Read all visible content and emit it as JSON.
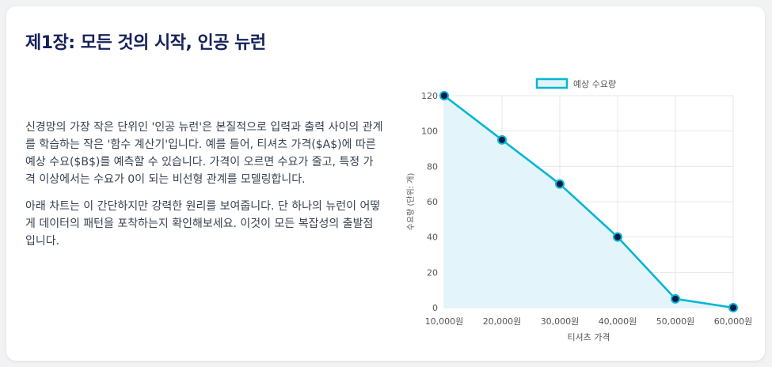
{
  "card": {
    "title": "제1장: 모든 것의 시작, 인공 뉴런",
    "paragraphs": [
      "신경망의 가장 작은 단위인 '인공 뉴런'은 본질적으로 입력과 출력 사이의 관계를 학습하는 작은 '함수 계산기'입니다. 예를 들어, 티셔츠 가격($A$)에 따른 예상 수요($B$)를 예측할 수 있습니다. 가격이 오르면 수요가 줄고, 특정 가격 이상에서는 수요가 0이 되는 비선형 관계를 모델링합니다.",
      "아래 차트는 이 간단하지만 강력한 원리를 보여줍니다. 단 하나의 뉴런이 어떻게 데이터의 패턴을 포착하는지 확인해보세요. 이것이 모든 복잡성의 출발점입니다."
    ]
  },
  "chart_data": {
    "type": "line",
    "categories": [
      "10,000원",
      "20,000원",
      "30,000원",
      "40,000원",
      "50,000원",
      "60,000원"
    ],
    "series": [
      {
        "name": "예상 수요량",
        "values": [
          120,
          95,
          70,
          40,
          5,
          0
        ]
      }
    ],
    "title": "",
    "xlabel": "티셔츠 가격",
    "ylabel": "수요량 (단위: 개)",
    "ylim": [
      0,
      120
    ],
    "yticks": [
      "0",
      "20",
      "40",
      "60",
      "80",
      "100",
      "120"
    ],
    "grid": true,
    "legend": "top",
    "fill": true,
    "colors": {
      "line": "#06b6d4",
      "fill": "#e0f4fa",
      "point": "#0a1a4a"
    }
  }
}
